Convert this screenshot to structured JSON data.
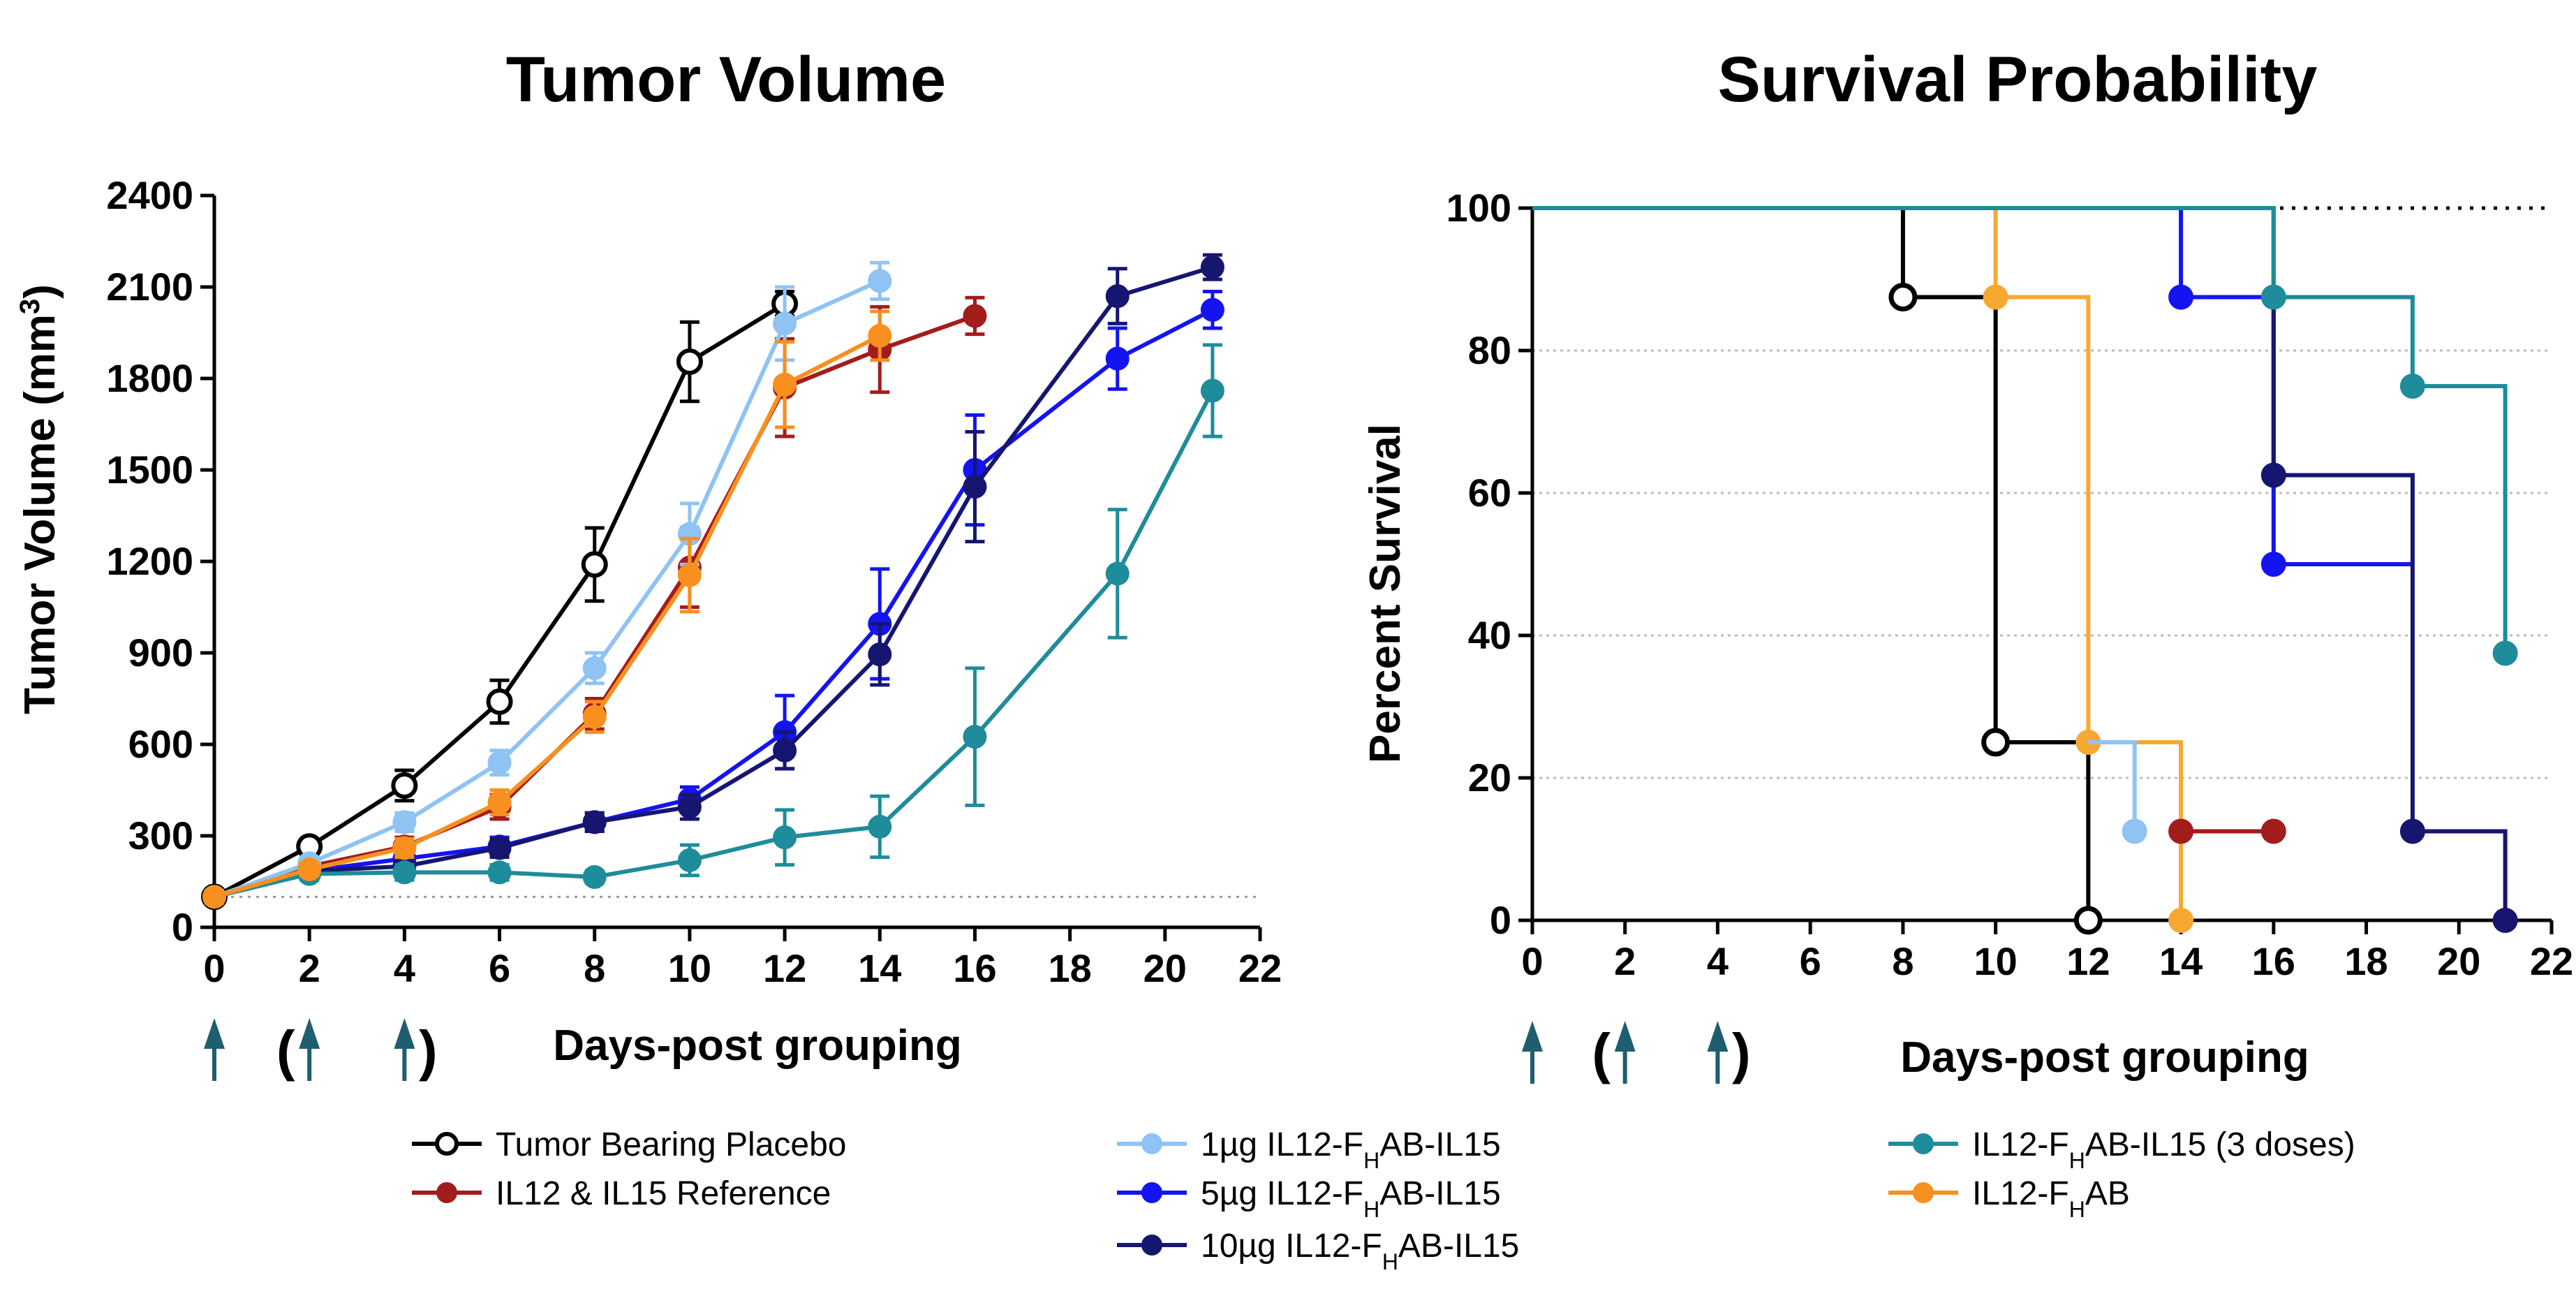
{
  "chart_data": [
    {
      "type": "line",
      "title": "Tumor Volume",
      "ylabel": "Tumor Volume (mm³)",
      "xlabel": "Days-post grouping",
      "xlim": [
        0,
        22
      ],
      "ylim": [
        0,
        2400
      ],
      "xticks": [
        0,
        2,
        4,
        6,
        8,
        10,
        12,
        14,
        16,
        18,
        20,
        22
      ],
      "yticks": [
        0,
        300,
        600,
        900,
        1200,
        1500,
        1800,
        2100,
        2400
      ],
      "reference_line": 100,
      "dosing_days": [
        0,
        2,
        4
      ],
      "series": [
        {
          "name": "Tumor Bearing Placebo",
          "color": "#000000",
          "marker": "open-circle",
          "x": [
            0,
            2,
            4,
            6,
            8,
            10,
            12
          ],
          "y": [
            100,
            265,
            465,
            740,
            1190,
            1855,
            2045
          ],
          "err": [
            20,
            25,
            50,
            70,
            120,
            130,
            40
          ]
        },
        {
          "name": "IL12 & IL15 Reference",
          "color": "#A31C1C",
          "marker": "circle",
          "x": [
            0,
            2,
            4,
            6,
            8,
            10,
            12,
            14,
            16
          ],
          "y": [
            100,
            200,
            265,
            395,
            700,
            1180,
            1770,
            1895,
            2005
          ],
          "err": [
            20,
            20,
            30,
            40,
            50,
            130,
            160,
            140,
            60
          ]
        },
        {
          "name": "1µg IL12-FHAB-IL15",
          "color": "#8EC3F3",
          "marker": "circle",
          "x": [
            0,
            2,
            4,
            6,
            8,
            10,
            12,
            14
          ],
          "y": [
            100,
            210,
            345,
            540,
            850,
            1290,
            1980,
            2120
          ],
          "err": [
            20,
            20,
            30,
            40,
            50,
            100,
            120,
            60
          ]
        },
        {
          "name": "5µg IL12-FHAB-IL15",
          "color": "#1414F0",
          "marker": "circle",
          "x": [
            0,
            2,
            4,
            6,
            8,
            10,
            12,
            14,
            16,
            19,
            21
          ],
          "y": [
            100,
            185,
            225,
            265,
            345,
            420,
            640,
            995,
            1500,
            1865,
            2025
          ],
          "err": [
            15,
            20,
            25,
            30,
            30,
            40,
            120,
            180,
            180,
            100,
            60
          ]
        },
        {
          "name": "10µg IL12-FHAB-IL15",
          "color": "#161671",
          "marker": "circle",
          "x": [
            0,
            2,
            4,
            6,
            8,
            10,
            12,
            14,
            16,
            19,
            21
          ],
          "y": [
            100,
            185,
            200,
            260,
            345,
            395,
            580,
            895,
            1445,
            2070,
            2165
          ],
          "err": [
            15,
            20,
            25,
            30,
            30,
            40,
            60,
            100,
            180,
            90,
            40
          ]
        },
        {
          "name": "IL12-FHAB-IL15 (3 doses)",
          "color": "#1E8C9A",
          "marker": "circle",
          "x": [
            0,
            2,
            4,
            6,
            8,
            10,
            12,
            14,
            16,
            19,
            21
          ],
          "y": [
            100,
            175,
            180,
            180,
            165,
            220,
            295,
            330,
            625,
            1160,
            1760
          ],
          "err": [
            15,
            20,
            25,
            25,
            20,
            50,
            90,
            100,
            225,
            210,
            150
          ]
        },
        {
          "name": "IL12-FHAB",
          "color": "#F7901E",
          "marker": "circle",
          "x": [
            0,
            2,
            4,
            6,
            8,
            10,
            12,
            14
          ],
          "y": [
            100,
            190,
            260,
            410,
            690,
            1155,
            1780,
            1940
          ],
          "err": [
            20,
            20,
            30,
            40,
            50,
            120,
            140,
            80
          ]
        }
      ]
    },
    {
      "type": "line",
      "title": "Survival Probability",
      "ylabel": "Percent Survival",
      "xlabel": "Days-post grouping",
      "xlim": [
        0,
        22
      ],
      "ylim": [
        0,
        100
      ],
      "xticks": [
        0,
        2,
        4,
        6,
        8,
        10,
        12,
        14,
        16,
        18,
        20,
        22
      ],
      "yticks": [
        0,
        20,
        40,
        60,
        80,
        100
      ],
      "dosing_days": [
        0,
        2,
        4
      ],
      "series": [
        {
          "name": "Tumor Bearing Placebo",
          "color": "#000000",
          "marker": "open-circle",
          "step_x": [
            0,
            8,
            10,
            12
          ],
          "step_y": [
            100,
            87.5,
            25,
            0
          ],
          "markers_x": [
            8,
            10,
            12
          ],
          "markers_y": [
            87.5,
            25,
            0
          ]
        },
        {
          "name": "IL12-FHAB",
          "color": "#F7A832",
          "marker": "circle",
          "step_x": [
            0,
            10,
            12,
            14
          ],
          "step_y": [
            100,
            87.5,
            25,
            0
          ],
          "markers_x": [
            10,
            12,
            14
          ],
          "markers_y": [
            87.5,
            25,
            0
          ]
        },
        {
          "name": "1µg IL12-FHAB-IL15",
          "color": "#8EC3F3",
          "marker": "circle",
          "step_x": [
            12,
            13
          ],
          "step_y": [
            25,
            12.5
          ],
          "markers_x": [
            13
          ],
          "markers_y": [
            12.5
          ]
        },
        {
          "name": "IL12 & IL15 Reference",
          "color": "#A31C1C",
          "marker": "circle",
          "step_x": [
            14,
            16
          ],
          "step_y": [
            12.5,
            12.5
          ],
          "markers_x": [
            14,
            16
          ],
          "markers_y": [
            12.5,
            12.5
          ]
        },
        {
          "name": "5µg IL12-FHAB-IL15",
          "color": "#1414F0",
          "marker": "circle",
          "step_x": [
            0,
            14,
            16,
            19
          ],
          "step_y": [
            100,
            87.5,
            50,
            50
          ],
          "markers_x": [
            14,
            16
          ],
          "markers_y": [
            87.5,
            50
          ]
        },
        {
          "name": "10µg IL12-FHAB-IL15",
          "color": "#161671",
          "marker": "circle",
          "step_x": [
            0,
            16,
            19,
            21
          ],
          "step_y": [
            100,
            62.5,
            12.5,
            0
          ],
          "markers_x": [
            16,
            19,
            21
          ],
          "markers_y": [
            62.5,
            12.5,
            0
          ]
        },
        {
          "name": "IL12-FHAB-IL15 (3 doses)",
          "color": "#1E8C9A",
          "marker": "circle",
          "step_x": [
            0,
            16,
            19,
            21
          ],
          "step_y": [
            100,
            87.5,
            75,
            37.5
          ],
          "markers_x": [
            16,
            19,
            21
          ],
          "markers_y": [
            87.5,
            75,
            37.5
          ]
        }
      ]
    }
  ],
  "legend": {
    "items": [
      {
        "label": "Tumor Bearing Placebo",
        "color": "#000000",
        "open": true
      },
      {
        "label": "IL12 & IL15 Reference",
        "color": "#A31C1C",
        "open": false
      },
      {
        "label": "1µg IL12-FHAB-IL15",
        "color": "#8EC3F3",
        "open": false
      },
      {
        "label": "5µg IL12-FHAB-IL15",
        "color": "#1414F0",
        "open": false
      },
      {
        "label": "10µg IL12-FHAB-IL15",
        "color": "#161671",
        "open": false
      },
      {
        "label": "IL12-FHAB-IL15 (3 doses)",
        "color": "#1E8C9A",
        "open": false
      },
      {
        "label": "IL12-FHAB",
        "color": "#F7901E",
        "open": false
      }
    ]
  },
  "dosing_arrow_color": "#1E5E6E"
}
